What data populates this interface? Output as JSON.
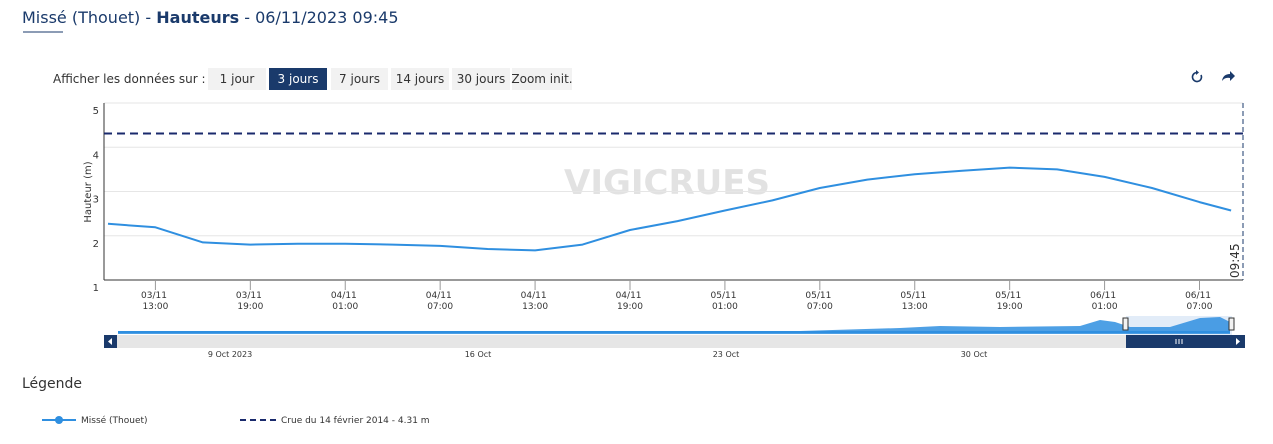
{
  "chart_data": {
    "type": "line",
    "title": [
      "Missé (Thouet) - ",
      "Hauteurs",
      " - 06/11/2023 09:45"
    ],
    "range_label": "Afficher les données sur :",
    "range_buttons": [
      "1 jour",
      "3 jours",
      "7 jours",
      "14 jours",
      "30 jours",
      "Zoom init."
    ],
    "active_button": 1,
    "watermark": "VIGICRUES",
    "y_label": "Hauteur (m)",
    "ylim": [
      1,
      5
    ],
    "yticks": [
      1,
      2,
      3,
      4,
      5
    ],
    "grid": true,
    "xlim": [
      "03/11 09:45",
      "06/11 09:45"
    ],
    "xticks": [
      "03/11 13:00",
      "03/11 19:00",
      "04/11 01:00",
      "04/11 07:00",
      "04/11 13:00",
      "04/11 19:00",
      "05/11 01:00",
      "05/11 07:00",
      "05/11 13:00",
      "05/11 19:00",
      "06/11 01:00",
      "06/11 07:00"
    ],
    "now_label": "09:45",
    "x": [
      "03/11 10:00",
      "03/11 13:00",
      "03/11 16:00",
      "03/11 19:00",
      "03/11 22:00",
      "04/11 01:00",
      "04/11 04:00",
      "04/11 07:00",
      "04/11 10:00",
      "04/11 13:00",
      "04/11 16:00",
      "04/11 19:00",
      "04/11 22:00",
      "05/11 01:00",
      "05/11 04:00",
      "05/11 07:00",
      "05/11 10:00",
      "05/11 13:00",
      "05/11 16:00",
      "05/11 19:00",
      "05/11 22:00",
      "06/11 01:00",
      "06/11 04:00",
      "06/11 07:00",
      "06/11 09:00"
    ],
    "series": [
      {
        "name": "Missé (Thouet)",
        "color": "#2f8fe0",
        "values": [
          2.27,
          2.19,
          1.85,
          1.8,
          1.82,
          1.82,
          1.8,
          1.77,
          1.7,
          1.67,
          1.8,
          2.13,
          2.33,
          2.57,
          2.8,
          3.08,
          3.27,
          3.39,
          3.47,
          3.54,
          3.5,
          3.33,
          3.08,
          2.76,
          2.57
        ]
      }
    ],
    "reference_lines": [
      {
        "name": "Crue du 14 février 2014 - 4.31 m",
        "value": 4.31,
        "color": "#1a2a6c"
      }
    ],
    "navigator_labels": [
      "9 Oct 2023",
      "16 Oct",
      "23 Oct",
      "30 Oct"
    ],
    "legend_title": "Légende"
  }
}
